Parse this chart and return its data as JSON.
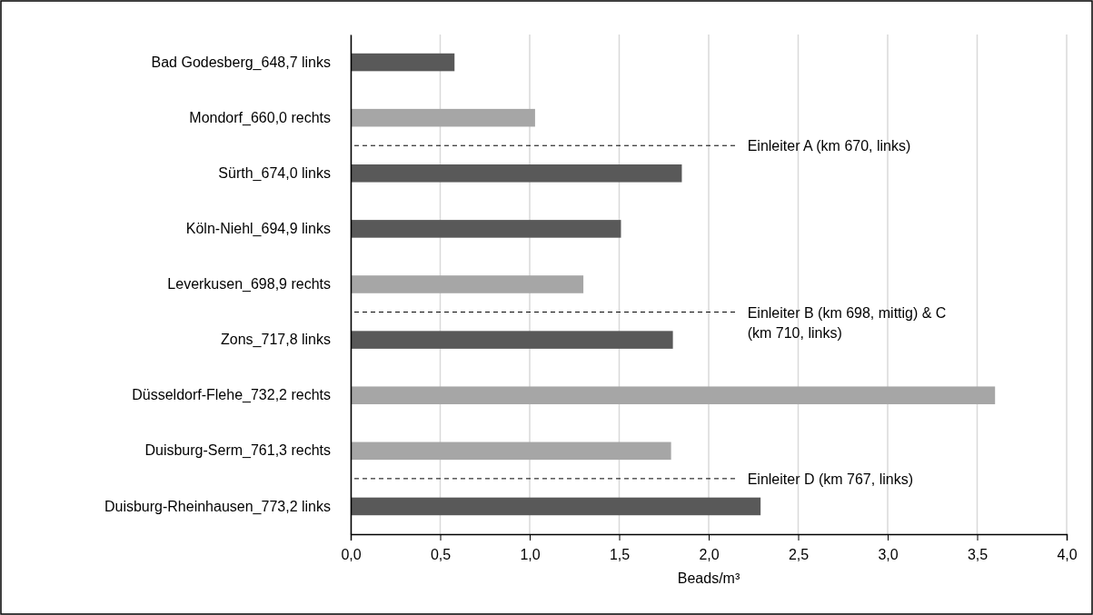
{
  "chart_data": {
    "type": "bar",
    "orientation": "horizontal",
    "xlabel": "Beads/m³",
    "categories": [
      "Bad Godesberg_648,7 links",
      "Mondorf_660,0 rechts",
      "Sürth_674,0 links",
      "Köln-Niehl_694,9 links",
      "Leverkusen_698,9 rechts",
      "Zons_717,8 links",
      "Düsseldorf-Flehe_732,2 rechts",
      "Duisburg-Serm_761,3 rechts",
      "Duisburg-Rheinhausen_773,2 links"
    ],
    "values": [
      0.58,
      1.03,
      1.85,
      1.51,
      1.3,
      1.8,
      3.6,
      1.79,
      2.29
    ],
    "colors": [
      "#595959",
      "#a6a6a6",
      "#595959",
      "#595959",
      "#a6a6a6",
      "#595959",
      "#a6a6a6",
      "#a6a6a6",
      "#595959"
    ],
    "xlim": [
      0,
      4
    ],
    "xticks": [
      {
        "value": 0,
        "label": "0,0"
      },
      {
        "value": 0.5,
        "label": "0,5"
      },
      {
        "value": 1,
        "label": "1,0"
      },
      {
        "value": 1.5,
        "label": "1,5"
      },
      {
        "value": 2,
        "label": "2,0"
      },
      {
        "value": 2.5,
        "label": "2,5"
      },
      {
        "value": 3,
        "label": "3,0"
      },
      {
        "value": 3.5,
        "label": "3,5"
      },
      {
        "value": 4,
        "label": "4,0"
      }
    ],
    "grid": "x",
    "annotations": [
      "Einleiter A (km 670, links)",
      "Einleiter B (km 698, mittig) & C (km 710, links)",
      "Einleiter D (km 767, links)"
    ]
  }
}
